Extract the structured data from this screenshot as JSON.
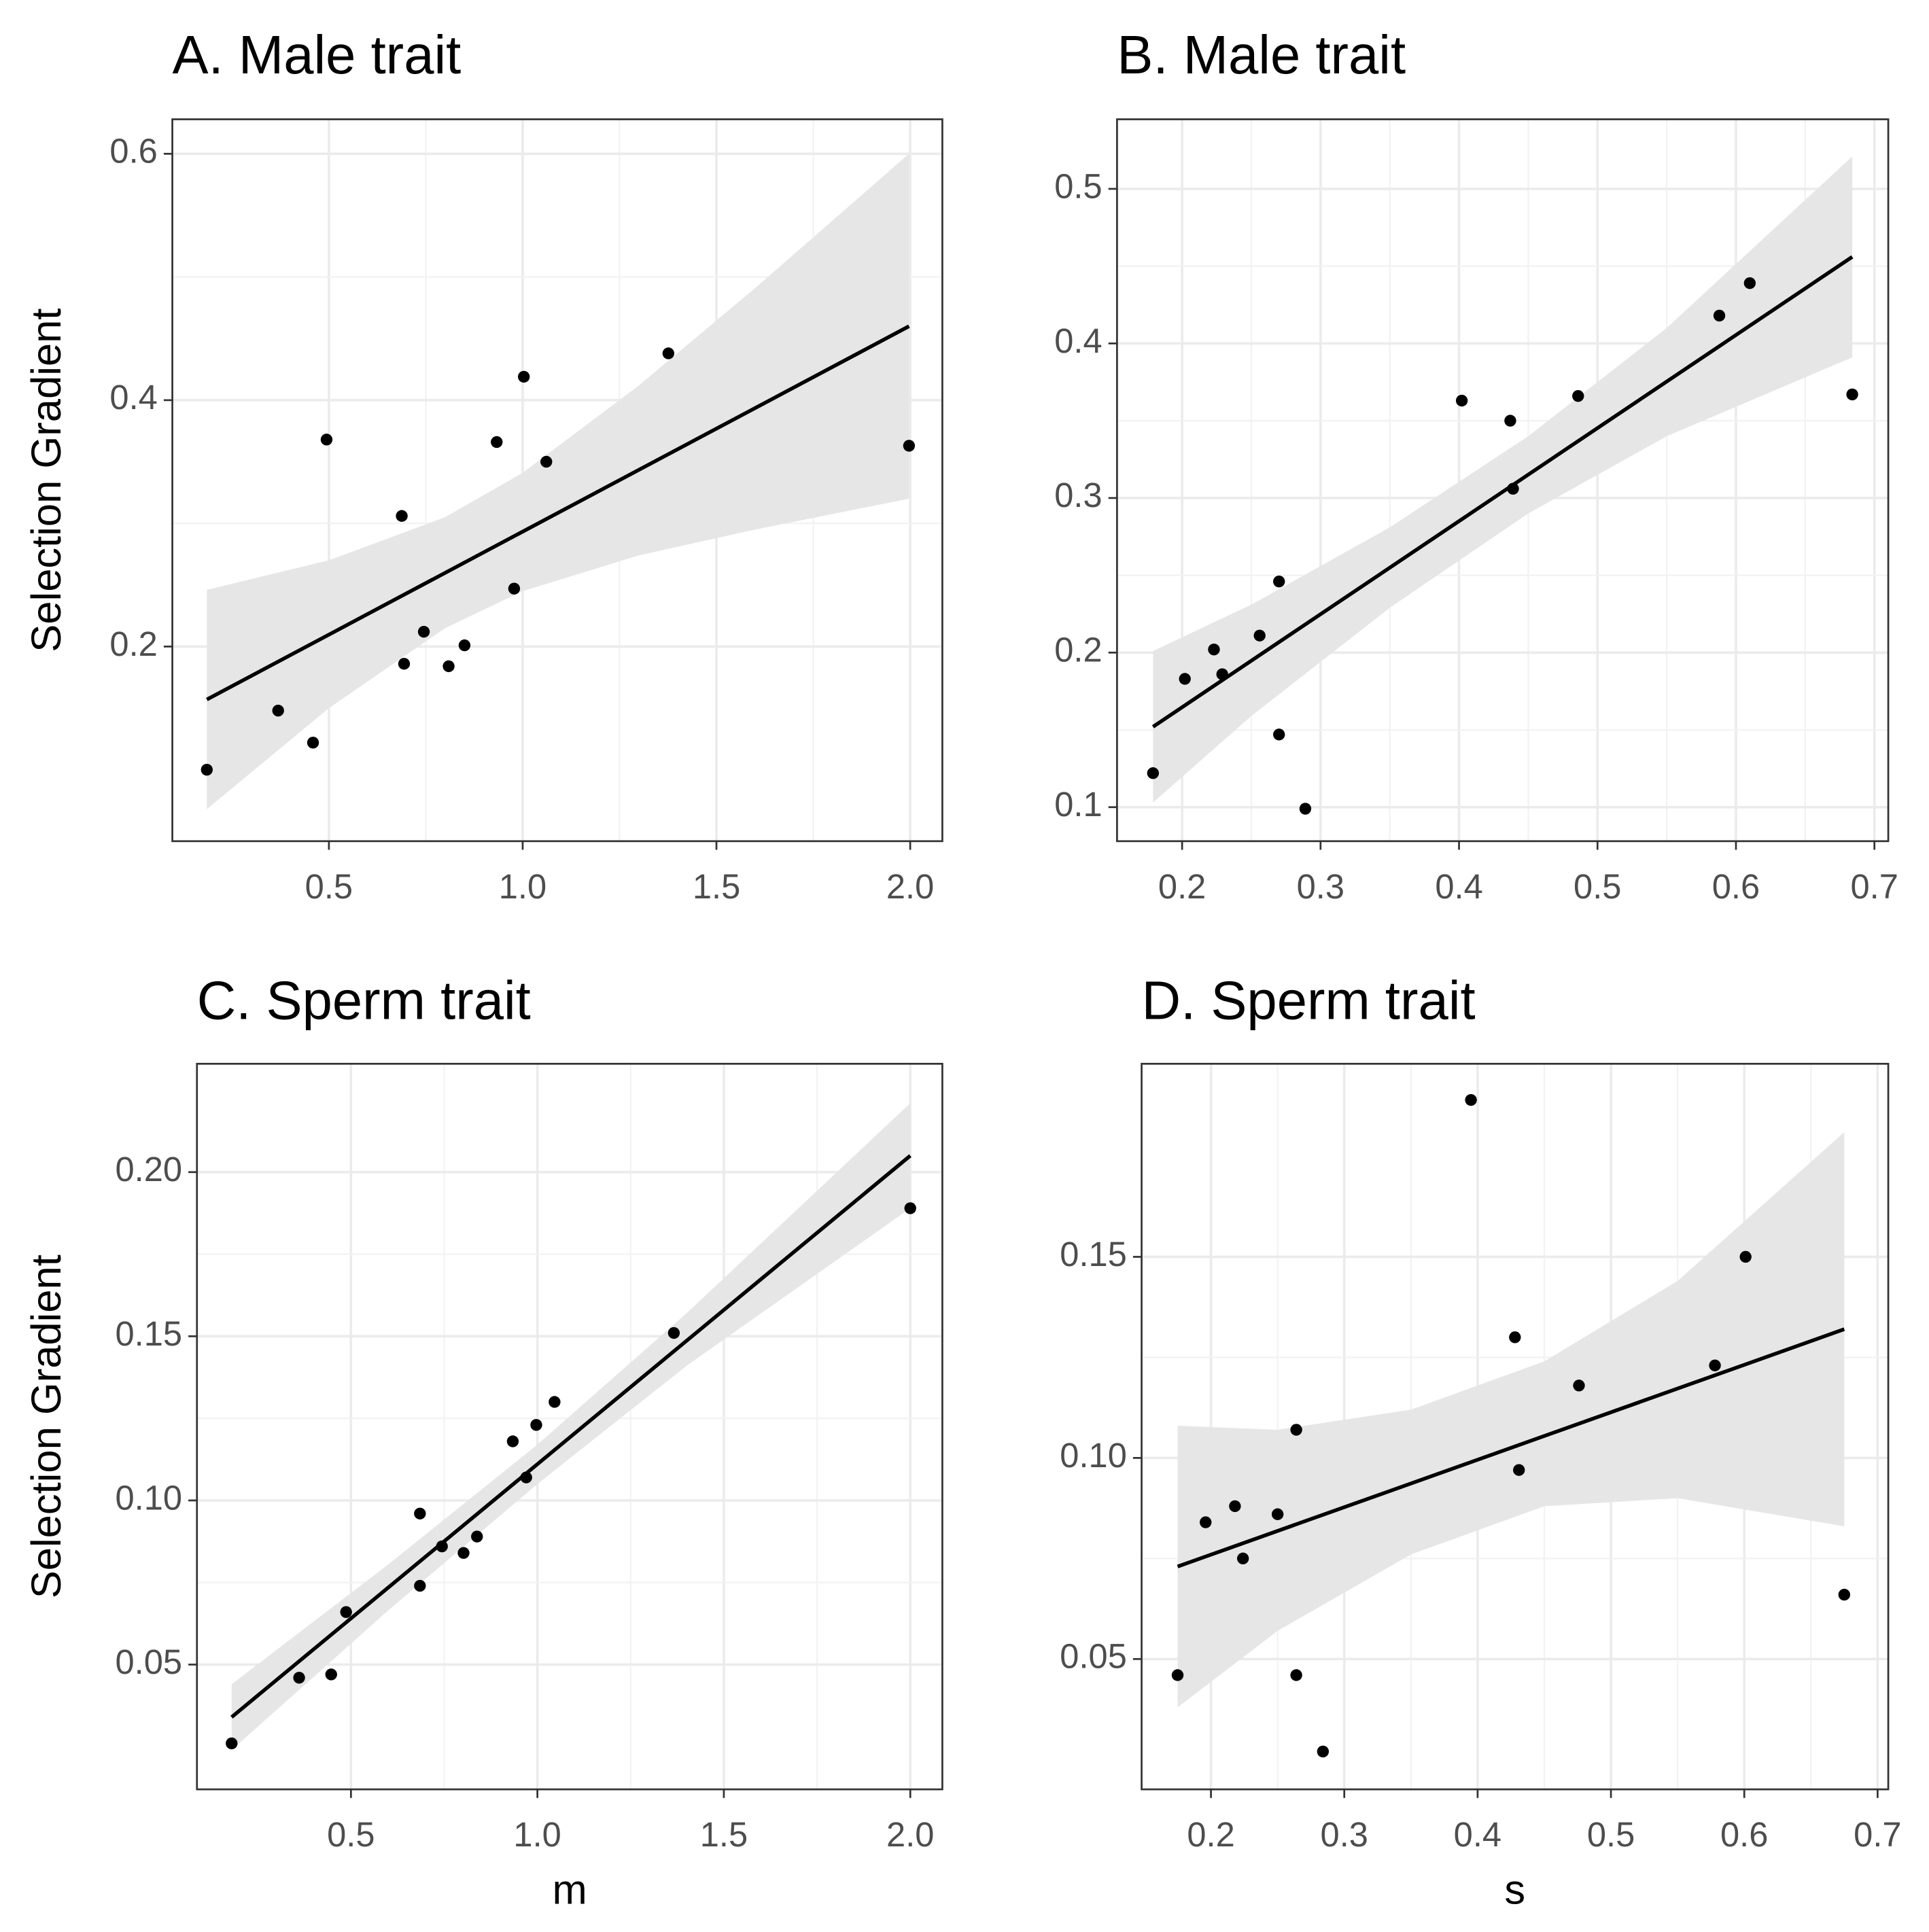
{
  "chart_data": [
    {
      "type": "scatter",
      "title": "A. Male trait",
      "ylabel": "Selection Gradient",
      "x": [
        0.185,
        0.369,
        0.459,
        0.494,
        0.688,
        0.694,
        0.745,
        0.809,
        0.85,
        0.933,
        0.978,
        1.003,
        1.061,
        1.376,
        1.997
      ],
      "values": [
        0.1,
        0.148,
        0.122,
        0.368,
        0.306,
        0.186,
        0.212,
        0.184,
        0.201,
        0.366,
        0.247,
        0.419,
        0.35,
        0.438,
        0.363
      ],
      "fit_x": [
        0.185,
        1.997
      ],
      "fit_y": [
        0.157,
        0.46
      ],
      "band_x": [
        0.185,
        0.5,
        0.8,
        1.0,
        1.3,
        1.6,
        1.997
      ],
      "band_lower": [
        0.068,
        0.15,
        0.215,
        0.245,
        0.274,
        0.295,
        0.32
      ],
      "band_upper": [
        0.246,
        0.27,
        0.305,
        0.341,
        0.412,
        0.491,
        0.6
      ],
      "xlim": [
        0.096,
        2.083
      ],
      "ylim": [
        0.042,
        0.628
      ],
      "xticks": [
        0.5,
        {
          "value": 1,
          "label": "1.0"
        },
        1.5,
        {
          "value": 2,
          "label": "2.0"
        }
      ],
      "yticks": [
        0.2,
        0.4,
        0.6
      ],
      "grid": true,
      "color": "#000000",
      "band_color": "#e6e6e6"
    },
    {
      "type": "scatter",
      "title": "B. Male trait",
      "x": [
        0.179,
        0.202,
        0.223,
        0.229,
        0.256,
        0.27,
        0.27,
        0.289,
        0.402,
        0.437,
        0.439,
        0.486,
        0.588,
        0.61,
        0.684
      ],
      "values": [
        0.122,
        0.183,
        0.202,
        0.186,
        0.211,
        0.246,
        0.147,
        0.099,
        0.363,
        0.35,
        0.306,
        0.366,
        0.418,
        0.439,
        0.367
      ],
      "fit_x": [
        0.179,
        0.684
      ],
      "fit_y": [
        0.152,
        0.456
      ],
      "band_x": [
        0.179,
        0.25,
        0.35,
        0.45,
        0.55,
        0.684
      ],
      "band_lower": [
        0.103,
        0.159,
        0.229,
        0.29,
        0.34,
        0.391
      ],
      "band_upper": [
        0.201,
        0.231,
        0.281,
        0.34,
        0.41,
        0.521
      ],
      "xlim": [
        0.153,
        0.71
      ],
      "ylim": [
        0.078,
        0.545
      ],
      "xticks": [
        0.2,
        0.3,
        0.4,
        0.5,
        0.6,
        0.7
      ],
      "yticks": [
        0.1,
        0.2,
        0.3,
        0.4,
        0.5
      ],
      "grid": true,
      "color": "#000000",
      "band_color": "#e6e6e6"
    },
    {
      "type": "scatter",
      "title": "C. Sperm trait",
      "ylabel": "Selection Gradient",
      "xlabel": "m",
      "x": [
        0.18,
        0.361,
        0.447,
        0.487,
        0.685,
        0.685,
        0.744,
        0.802,
        0.838,
        0.934,
        0.97,
        0.997,
        1.046,
        1.366,
        2.0
      ],
      "values": [
        0.026,
        0.046,
        0.047,
        0.066,
        0.096,
        0.074,
        0.086,
        0.084,
        0.089,
        0.118,
        0.107,
        0.123,
        0.13,
        0.151,
        0.189
      ],
      "fit_x": [
        0.18,
        2.0
      ],
      "fit_y": [
        0.034,
        0.205
      ],
      "band_x": [
        0.18,
        0.6,
        1.0,
        1.4,
        2.0
      ],
      "band_lower": [
        0.024,
        0.0665,
        0.105,
        0.141,
        0.189
      ],
      "band_upper": [
        0.044,
        0.0805,
        0.117,
        0.157,
        0.221
      ],
      "xlim": [
        0.087,
        2.086
      ],
      "ylim": [
        0.012,
        0.233
      ],
      "xticks": [
        0.5,
        {
          "value": 1,
          "label": "1.0"
        },
        1.5,
        {
          "value": 2,
          "label": "2.0"
        }
      ],
      "yticks": [
        0.05,
        {
          "value": 0.1,
          "label": "0.10"
        },
        0.15,
        {
          "value": 0.2,
          "label": "0.20"
        }
      ],
      "grid": true,
      "color": "#000000",
      "band_color": "#e6e6e6"
    },
    {
      "type": "scatter",
      "title": "D. Sperm trait",
      "xlabel": "s",
      "x": [
        0.175,
        0.196,
        0.218,
        0.224,
        0.25,
        0.264,
        0.264,
        0.284,
        0.395,
        0.428,
        0.431,
        0.476,
        0.578,
        0.601,
        0.675
      ],
      "values": [
        0.046,
        0.084,
        0.088,
        0.075,
        0.086,
        0.107,
        0.046,
        0.027,
        0.189,
        0.13,
        0.097,
        0.118,
        0.123,
        0.15,
        0.066
      ],
      "fit_x": [
        0.175,
        0.675
      ],
      "fit_y": [
        0.073,
        0.132
      ],
      "band_x": [
        0.175,
        0.25,
        0.35,
        0.45,
        0.55,
        0.675
      ],
      "band_lower": [
        0.038,
        0.057,
        0.076,
        0.088,
        0.09,
        0.083
      ],
      "band_upper": [
        0.108,
        0.107,
        0.112,
        0.124,
        0.144,
        0.181
      ],
      "xlim": [
        0.148,
        0.708
      ],
      "ylim": [
        0.0176,
        0.198
      ],
      "xticks": [
        0.2,
        0.3,
        0.4,
        0.5,
        0.6,
        0.7
      ],
      "yticks": [
        0.05,
        {
          "value": 0.1,
          "label": "0.10"
        },
        0.15
      ],
      "grid": true,
      "color": "#000000",
      "band_color": "#e6e6e6"
    }
  ]
}
